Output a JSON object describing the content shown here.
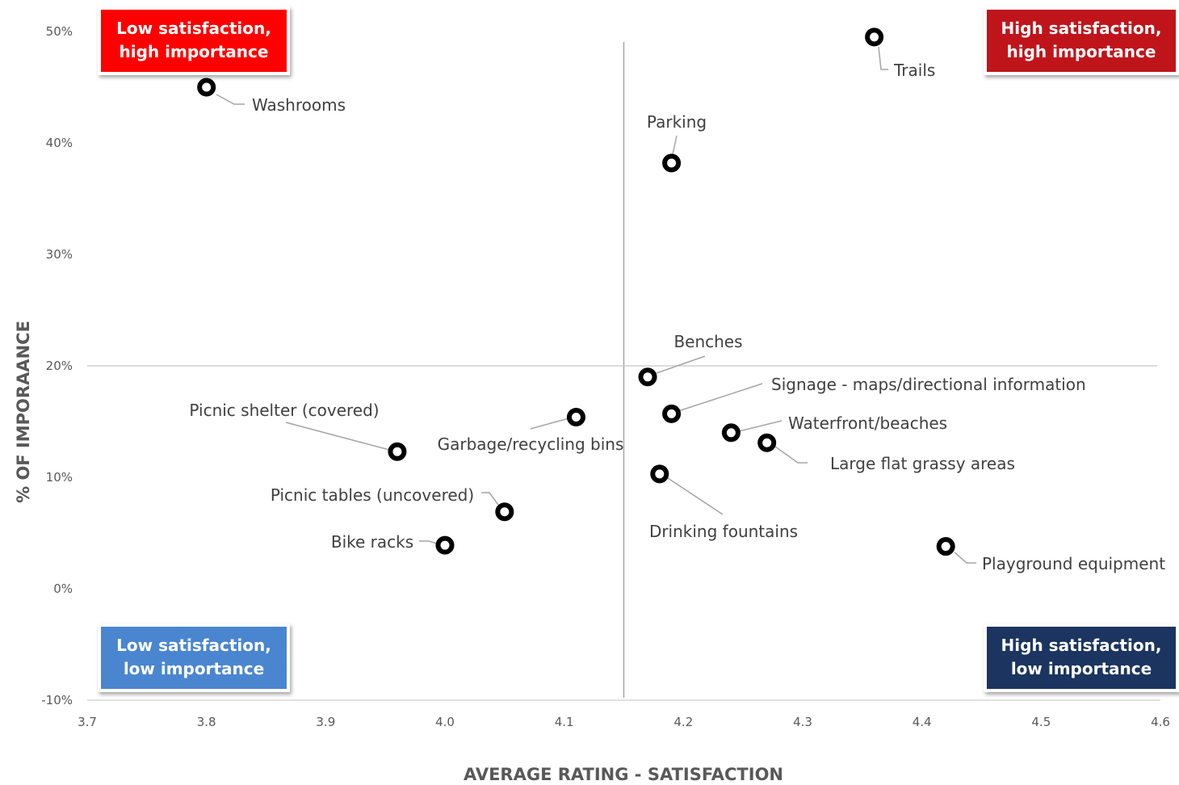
{
  "chart_data": {
    "type": "scatter",
    "title": "",
    "xlabel": "AVERAGE RATING - SATISFACTION",
    "ylabel": "% OF IMPORAANCE",
    "xlim": [
      3.7,
      4.6
    ],
    "ylim": [
      -10,
      50
    ],
    "x_ticks": [
      "3.7",
      "3.8",
      "3.9",
      "4.0",
      "4.1",
      "4.2",
      "4.3",
      "4.4",
      "4.5",
      "4.6"
    ],
    "y_ticks": [
      "-10%",
      "0%",
      "10%",
      "20%",
      "30%",
      "40%",
      "50%"
    ],
    "divider": {
      "x": 4.15,
      "y": 20
    },
    "grid": false,
    "legend": "none",
    "points": [
      {
        "label": "Washrooms",
        "x": 3.8,
        "y": 45
      },
      {
        "label": "Trails",
        "x": 4.36,
        "y": 49.5
      },
      {
        "label": "Parking",
        "x": 4.19,
        "y": 38.2
      },
      {
        "label": "Benches",
        "x": 4.17,
        "y": 19
      },
      {
        "label": "Signage - maps/directional information",
        "x": 4.19,
        "y": 15.7
      },
      {
        "label": "Waterfront/beaches",
        "x": 4.24,
        "y": 14
      },
      {
        "label": "Large flat grassy areas",
        "x": 4.27,
        "y": 13.1
      },
      {
        "label": "Drinking fountains",
        "x": 4.18,
        "y": 10.3
      },
      {
        "label": "Playground equipment",
        "x": 4.42,
        "y": 3.8
      },
      {
        "label": "Picnic shelter (covered)",
        "x": 3.96,
        "y": 12.3
      },
      {
        "label": "Garbage/recycling bins",
        "x": 4.11,
        "y": 15.4
      },
      {
        "label": "Picnic tables (uncovered)",
        "x": 4.05,
        "y": 6.9
      },
      {
        "label": "Bike racks",
        "x": 4.0,
        "y": 3.9
      }
    ],
    "quadrants": [
      {
        "line1": "Low satisfaction,",
        "line2": "high importance",
        "color": "#ff0000"
      },
      {
        "line1": "High satisfaction,",
        "line2": "high importance",
        "color": "#c0141b"
      },
      {
        "line1": "Low satisfaction,",
        "line2": "low importance",
        "color": "#4a86d0"
      },
      {
        "line1": "High satisfaction,",
        "line2": "low importance",
        "color": "#1b3560"
      }
    ]
  }
}
